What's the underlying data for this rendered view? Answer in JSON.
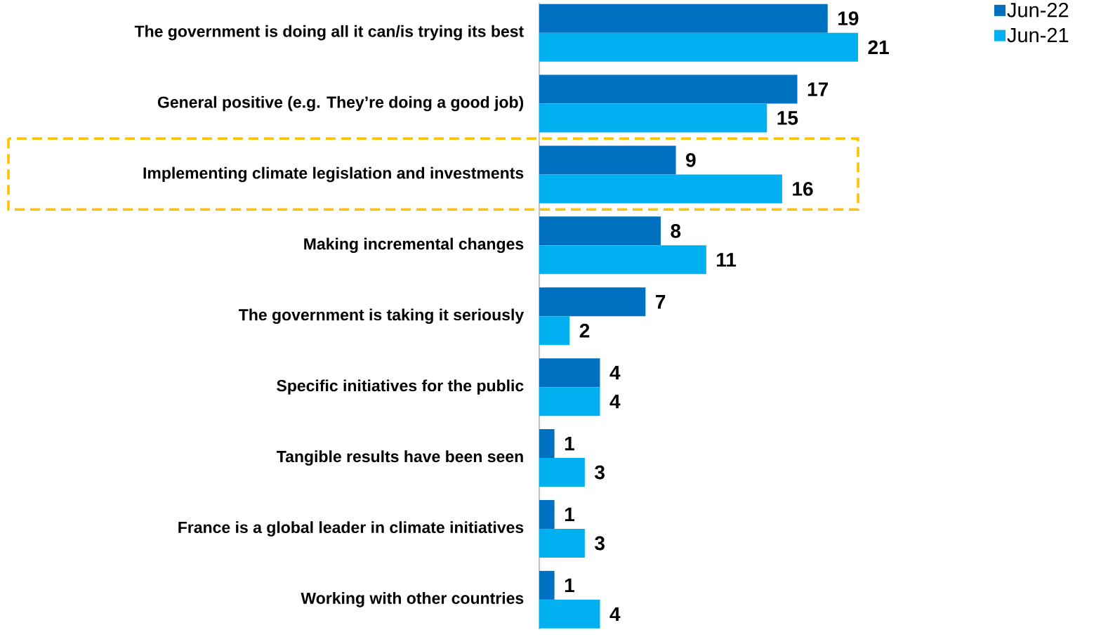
{
  "chart_data": {
    "type": "bar",
    "orientation": "horizontal",
    "categories": [
      "The government is doing all it can/is trying its best",
      "General positive (e.g. They’re doing a good job)",
      "Implementing climate legislation and investments",
      "Making incremental changes",
      "The government is taking it seriously",
      "Specific initiatives for the public",
      "Tangible results have been seen",
      "France is a global leader in climate initiatives",
      "Working with other countries"
    ],
    "series": [
      {
        "name": "Jun-22",
        "color": "#0070c0",
        "values": [
          19,
          17,
          9,
          8,
          7,
          4,
          1,
          1,
          1
        ]
      },
      {
        "name": "Jun-21",
        "color": "#00b0f0",
        "values": [
          21,
          15,
          16,
          11,
          2,
          4,
          3,
          3,
          4
        ]
      }
    ],
    "tick_labels": "y",
    "data_labels": true,
    "legend": "top right"
  }
}
